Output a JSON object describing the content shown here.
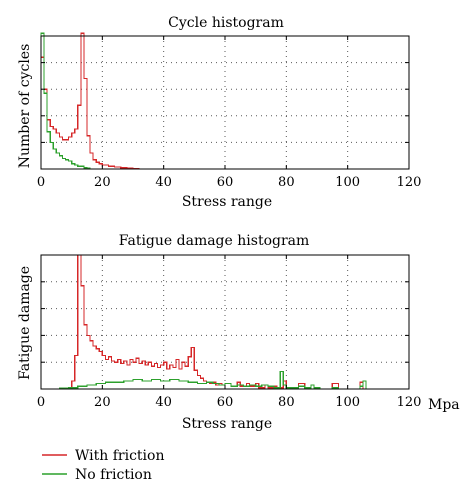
{
  "colors": {
    "with_friction": "#d62728",
    "no_friction": "#2ca02c"
  },
  "legend": {
    "items": [
      {
        "name": "With friction",
        "color": "#d62728"
      },
      {
        "name": "No friction",
        "color": "#2ca02c"
      }
    ]
  },
  "unit_label": "Mpa",
  "chart_data": [
    {
      "type": "histogram",
      "title": "Cycle histogram",
      "xlabel": "Stress range",
      "ylabel": "Number of cycles",
      "xlim": [
        0,
        120
      ],
      "ylim": [
        0,
        100
      ],
      "grid": true,
      "x_ticks": [
        0,
        20,
        40,
        60,
        80,
        100,
        120
      ],
      "y_ticks": [
        0,
        20,
        40,
        60,
        80,
        100
      ],
      "show_y_tick_labels": false,
      "series": [
        {
          "name": "With friction",
          "color": "#d62728",
          "bins": [
            [
              0,
              84
            ],
            [
              1,
              60
            ],
            [
              2,
              37
            ],
            [
              3,
              32
            ],
            [
              4,
              30
            ],
            [
              5,
              27
            ],
            [
              6,
              24
            ],
            [
              7,
              22
            ],
            [
              8,
              22
            ],
            [
              9,
              24
            ],
            [
              10,
              27
            ],
            [
              11,
              30
            ],
            [
              12,
              48
            ],
            [
              13,
              102
            ],
            [
              14,
              68
            ],
            [
              15,
              25
            ],
            [
              16,
              12
            ],
            [
              17,
              7
            ],
            [
              18,
              5
            ],
            [
              19,
              4
            ],
            [
              20,
              3
            ],
            [
              22,
              2
            ],
            [
              24,
              1.5
            ],
            [
              26,
              1
            ],
            [
              28,
              0.5
            ],
            [
              30,
              0.2
            ],
            [
              32,
              0
            ]
          ]
        },
        {
          "name": "No friction",
          "color": "#2ca02c",
          "bins": [
            [
              0,
              102
            ],
            [
              1,
              57
            ],
            [
              2,
              28
            ],
            [
              3,
              20
            ],
            [
              4,
              15
            ],
            [
              5,
              12
            ],
            [
              6,
              10
            ],
            [
              7,
              8
            ],
            [
              8,
              7
            ],
            [
              9,
              6
            ],
            [
              10,
              4
            ],
            [
              11,
              3
            ],
            [
              12,
              2
            ],
            [
              13,
              2
            ],
            [
              14,
              1
            ],
            [
              15,
              0.5
            ],
            [
              16,
              0
            ]
          ]
        }
      ]
    },
    {
      "type": "histogram",
      "title": "Fatigue damage histogram",
      "xlabel": "Stress range",
      "ylabel": "Fatigue damage",
      "xlim": [
        0,
        120
      ],
      "ylim": [
        0,
        100
      ],
      "grid": true,
      "x_ticks": [
        0,
        20,
        40,
        60,
        80,
        100,
        120
      ],
      "y_ticks": [
        0,
        20,
        40,
        60,
        80,
        100
      ],
      "show_y_tick_labels": false,
      "series": [
        {
          "name": "With friction",
          "color": "#d62728",
          "bins": [
            [
              0,
              0
            ],
            [
              9,
              1
            ],
            [
              10,
              6
            ],
            [
              11,
              25
            ],
            [
              12,
              100
            ],
            [
              13,
              77
            ],
            [
              14,
              48
            ],
            [
              15,
              40
            ],
            [
              16,
              36
            ],
            [
              17,
              32
            ],
            [
              18,
              30
            ],
            [
              19,
              28
            ],
            [
              20,
              25
            ],
            [
              21,
              22
            ],
            [
              22,
              24
            ],
            [
              23,
              21
            ],
            [
              24,
              20
            ],
            [
              25,
              22
            ],
            [
              26,
              19
            ],
            [
              27,
              21
            ],
            [
              28,
              18
            ],
            [
              29,
              22
            ],
            [
              30,
              20
            ],
            [
              31,
              23
            ],
            [
              32,
              19
            ],
            [
              33,
              21
            ],
            [
              34,
              18
            ],
            [
              35,
              20
            ],
            [
              36,
              17
            ],
            [
              37,
              19
            ],
            [
              38,
              16
            ],
            [
              39,
              18
            ],
            [
              40,
              20
            ],
            [
              41,
              15
            ],
            [
              42,
              18
            ],
            [
              43,
              16
            ],
            [
              44,
              22
            ],
            [
              45,
              15
            ],
            [
              46,
              20
            ],
            [
              47,
              17
            ],
            [
              48,
              24
            ],
            [
              49,
              31
            ],
            [
              50,
              14
            ],
            [
              51,
              10
            ],
            [
              52,
              8
            ],
            [
              53,
              6
            ],
            [
              54,
              5
            ],
            [
              55,
              4
            ],
            [
              56,
              5
            ],
            [
              57,
              3
            ],
            [
              58,
              4
            ],
            [
              59,
              3
            ],
            [
              60,
              4
            ],
            [
              62,
              2
            ],
            [
              64,
              5
            ],
            [
              65,
              2
            ],
            [
              67,
              4
            ],
            [
              68,
              2
            ],
            [
              70,
              4
            ],
            [
              71,
              1
            ],
            [
              73,
              3
            ],
            [
              74,
              1
            ],
            [
              76,
              2
            ],
            [
              77,
              1
            ],
            [
              79,
              6
            ],
            [
              80,
              1
            ],
            [
              82,
              1
            ],
            [
              84,
              4
            ],
            [
              86,
              1
            ],
            [
              88,
              3
            ],
            [
              89,
              1
            ],
            [
              91,
              0
            ],
            [
              95,
              4
            ],
            [
              97,
              0
            ],
            [
              104,
              5
            ],
            [
              105,
              0
            ]
          ]
        },
        {
          "name": "No friction",
          "color": "#2ca02c",
          "bins": [
            [
              0,
              0
            ],
            [
              6,
              0.5
            ],
            [
              9,
              1
            ],
            [
              12,
              2
            ],
            [
              15,
              3
            ],
            [
              18,
              4
            ],
            [
              21,
              5
            ],
            [
              24,
              5
            ],
            [
              27,
              6
            ],
            [
              30,
              7
            ],
            [
              33,
              6
            ],
            [
              36,
              7
            ],
            [
              39,
              6
            ],
            [
              42,
              7
            ],
            [
              45,
              6
            ],
            [
              48,
              5
            ],
            [
              51,
              4
            ],
            [
              54,
              5
            ],
            [
              56,
              4
            ],
            [
              58,
              3
            ],
            [
              60,
              4
            ],
            [
              62,
              2
            ],
            [
              64,
              3
            ],
            [
              66,
              2
            ],
            [
              68,
              3
            ],
            [
              70,
              2
            ],
            [
              72,
              3
            ],
            [
              74,
              2
            ],
            [
              76,
              1
            ],
            [
              78,
              13
            ],
            [
              79,
              3
            ],
            [
              80,
              1
            ],
            [
              82,
              1
            ],
            [
              84,
              2
            ],
            [
              86,
              1
            ],
            [
              88,
              3
            ],
            [
              89,
              1
            ],
            [
              91,
              0
            ],
            [
              95,
              1
            ],
            [
              97,
              0
            ],
            [
              104,
              2
            ],
            [
              105,
              6
            ],
            [
              106,
              0
            ]
          ]
        }
      ]
    }
  ]
}
